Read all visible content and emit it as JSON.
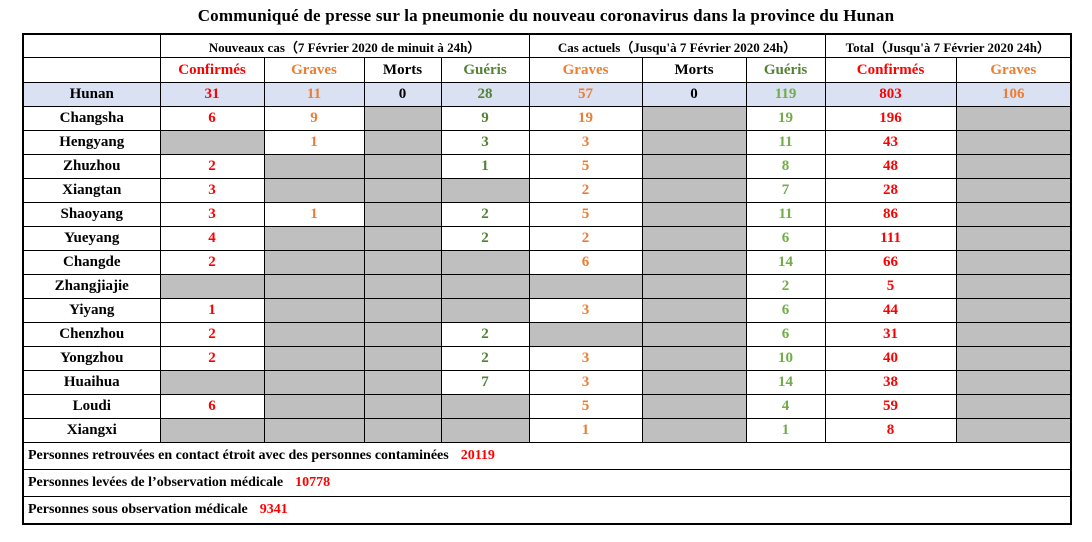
{
  "title": "Communiqué de presse sur la pneumonie du nouveau coronavirus dans la province du Hunan",
  "colors": {
    "red": "#ff0000",
    "orange": "#ed7d31",
    "black": "#000000",
    "dark_green": "#548235",
    "light_green": "#70ad47",
    "gray_cell": "#bfbfbf",
    "highlight_row": "#d9e1f2",
    "border": "#000000"
  },
  "table": {
    "groups": [
      {
        "key": "nouveaux-cas",
        "label": "Nouveaux cas（7 Février 2020 de minuit à 24h）",
        "span": 4
      },
      {
        "key": "cas-actuels",
        "label": "Cas actuels（Jusqu'à 7 Février 2020 24h）",
        "span": 3
      },
      {
        "key": "total",
        "label": "Total（Jusqu'à 7 Février 2020 24h）",
        "span": 2
      }
    ],
    "columns": [
      {
        "key": "nc-confirmes",
        "label": "Confirmés",
        "color": "red"
      },
      {
        "key": "nc-graves",
        "label": "Graves",
        "color": "orange"
      },
      {
        "key": "nc-morts",
        "label": "Morts",
        "color": "black"
      },
      {
        "key": "nc-gueris",
        "label": "Guéris",
        "color": "dark_green"
      },
      {
        "key": "ca-graves",
        "label": "Graves",
        "color": "orange"
      },
      {
        "key": "ca-morts",
        "label": "Morts",
        "color": "black"
      },
      {
        "key": "ca-gueris",
        "label": "Guéris",
        "color": "dark_green"
      },
      {
        "key": "t-confirmes",
        "label": "Confirmés",
        "color": "red"
      },
      {
        "key": "t-graves",
        "label": "Graves",
        "color": "orange"
      }
    ],
    "value_colors": [
      "red",
      "orange",
      "black",
      "dark_green",
      "orange",
      "black",
      "light_green",
      "red",
      "orange"
    ],
    "rows": [
      {
        "region": "Hunan",
        "highlight": true,
        "values": [
          "31",
          "11",
          "0",
          "28",
          "57",
          "0",
          "119",
          "803",
          "106"
        ]
      },
      {
        "region": "Changsha",
        "highlight": false,
        "values": [
          "6",
          "9",
          null,
          "9",
          "19",
          null,
          "19",
          "196",
          null
        ]
      },
      {
        "region": "Hengyang",
        "highlight": false,
        "values": [
          null,
          "1",
          null,
          "3",
          "3",
          null,
          "11",
          "43",
          null
        ]
      },
      {
        "region": "Zhuzhou",
        "highlight": false,
        "values": [
          "2",
          null,
          null,
          "1",
          "5",
          null,
          "8",
          "48",
          null
        ]
      },
      {
        "region": "Xiangtan",
        "highlight": false,
        "values": [
          "3",
          null,
          null,
          null,
          "2",
          null,
          "7",
          "28",
          null
        ]
      },
      {
        "region": "Shaoyang",
        "highlight": false,
        "values": [
          "3",
          "1",
          null,
          "2",
          "5",
          null,
          "11",
          "86",
          null
        ]
      },
      {
        "region": "Yueyang",
        "highlight": false,
        "values": [
          "4",
          null,
          null,
          "2",
          "2",
          null,
          "6",
          "111",
          null
        ]
      },
      {
        "region": "Changde",
        "highlight": false,
        "values": [
          "2",
          null,
          null,
          null,
          "6",
          null,
          "14",
          "66",
          null
        ]
      },
      {
        "region": "Zhangjiajie",
        "highlight": false,
        "values": [
          null,
          null,
          null,
          null,
          null,
          null,
          "2",
          "5",
          null
        ]
      },
      {
        "region": "Yiyang",
        "highlight": false,
        "values": [
          "1",
          null,
          null,
          null,
          "3",
          null,
          "6",
          "44",
          null
        ]
      },
      {
        "region": "Chenzhou",
        "highlight": false,
        "values": [
          "2",
          null,
          null,
          "2",
          null,
          null,
          "6",
          "31",
          null
        ]
      },
      {
        "region": "Yongzhou",
        "highlight": false,
        "values": [
          "2",
          null,
          null,
          "2",
          "3",
          null,
          "10",
          "40",
          null
        ]
      },
      {
        "region": "Huaihua",
        "highlight": false,
        "values": [
          null,
          null,
          null,
          "7",
          "3",
          null,
          "14",
          "38",
          null
        ]
      },
      {
        "region": "Loudi",
        "highlight": false,
        "values": [
          "6",
          null,
          null,
          null,
          "5",
          null,
          "4",
          "59",
          null
        ]
      },
      {
        "region": "Xiangxi",
        "highlight": false,
        "values": [
          null,
          null,
          null,
          null,
          "1",
          null,
          "1",
          "8",
          null
        ]
      }
    ]
  },
  "footer": [
    {
      "label": "Personnes retrouvées en contact étroit avec des personnes contaminées",
      "value": "20119"
    },
    {
      "label": "Personnes levées de l’observation médicale",
      "value": "10778"
    },
    {
      "label": "Personnes sous observation médicale",
      "value": "9341"
    }
  ]
}
